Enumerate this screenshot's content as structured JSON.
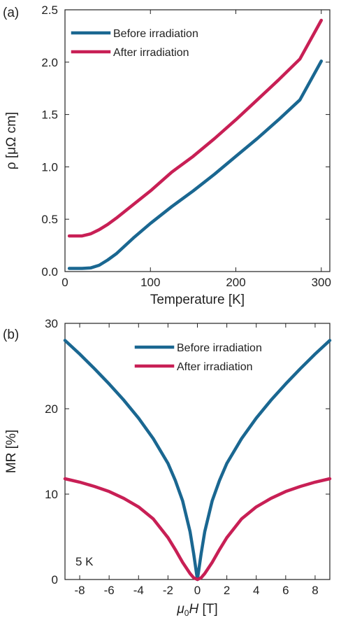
{
  "chart_data": [
    {
      "panel_label": "(a)",
      "type": "line",
      "xlabel": "Temperature [K]",
      "ylabel": "ρ [μΩ cm]",
      "xlim": [
        0,
        310
      ],
      "ylim": [
        0,
        2.5
      ],
      "xticks": [
        0,
        100,
        200,
        300
      ],
      "xtick_labels": [
        "0",
        "100",
        "200",
        "300"
      ],
      "yticks": [
        0,
        0.5,
        1.0,
        1.5,
        2.0,
        2.5
      ],
      "ytick_labels": [
        "0.0",
        "0.5",
        "1.0",
        "1.5",
        "2.0",
        "2.5"
      ],
      "grid": false,
      "legend_position": "top-left",
      "series": [
        {
          "name": "Before irradiation",
          "color": "#1a6791",
          "x": [
            5,
            10,
            20,
            30,
            40,
            50,
            60,
            80,
            100,
            125,
            150,
            175,
            200,
            225,
            250,
            275,
            300
          ],
          "y": [
            0.03,
            0.03,
            0.03,
            0.035,
            0.06,
            0.11,
            0.17,
            0.32,
            0.46,
            0.62,
            0.77,
            0.93,
            1.1,
            1.27,
            1.45,
            1.64,
            2.01
          ]
        },
        {
          "name": "After irradiation",
          "color": "#c81f55",
          "x": [
            5,
            10,
            20,
            30,
            40,
            50,
            60,
            80,
            100,
            125,
            150,
            175,
            200,
            225,
            250,
            275,
            300
          ],
          "y": [
            0.34,
            0.34,
            0.34,
            0.36,
            0.4,
            0.45,
            0.51,
            0.64,
            0.77,
            0.95,
            1.1,
            1.27,
            1.45,
            1.64,
            1.83,
            2.03,
            2.4
          ]
        }
      ]
    },
    {
      "panel_label": "(b)",
      "type": "line",
      "xlabel_prefix": "μ",
      "xlabel_sub": "0",
      "xlabel_var": "H",
      "xlabel_unit": " [T]",
      "ylabel": "MR [%]",
      "annotation": "5 K",
      "xlim": [
        -9,
        9
      ],
      "ylim": [
        0,
        30
      ],
      "xticks": [
        -8,
        -6,
        -4,
        -2,
        0,
        2,
        4,
        6,
        8
      ],
      "xtick_labels": [
        "-8",
        "-6",
        "-4",
        "-2",
        "0",
        "2",
        "4",
        "6",
        "8"
      ],
      "yticks": [
        0,
        10,
        20,
        30
      ],
      "ytick_labels": [
        "0",
        "10",
        "20",
        "30"
      ],
      "grid": false,
      "legend_position": "top-center",
      "series": [
        {
          "name": "Before irradiation",
          "color": "#1a6791",
          "x": [
            -9,
            -8,
            -7,
            -6,
            -5,
            -4,
            -3,
            -2,
            -1.5,
            -1,
            -0.5,
            -0.25,
            0,
            0.25,
            0.5,
            1,
            1.5,
            2,
            3,
            4,
            5,
            6,
            7,
            8,
            9
          ],
          "y": [
            28,
            26.4,
            24.7,
            22.9,
            21,
            18.9,
            16.5,
            13.6,
            11.6,
            9.2,
            5.6,
            3,
            0,
            3,
            5.6,
            9.2,
            11.6,
            13.6,
            16.5,
            18.9,
            21,
            22.9,
            24.7,
            26.4,
            28
          ]
        },
        {
          "name": "After irradiation",
          "color": "#c81f55",
          "x": [
            -9,
            -8,
            -7,
            -6,
            -5,
            -4,
            -3,
            -2,
            -1.5,
            -1,
            -0.5,
            -0.25,
            0,
            0.25,
            0.5,
            1,
            1.5,
            2,
            3,
            4,
            5,
            6,
            7,
            8,
            9
          ],
          "y": [
            11.8,
            11.4,
            10.9,
            10.3,
            9.5,
            8.5,
            7.1,
            4.9,
            3.5,
            2,
            0.7,
            0.2,
            0,
            0.2,
            0.7,
            2,
            3.5,
            4.9,
            7.1,
            8.5,
            9.5,
            10.3,
            10.9,
            11.4,
            11.8
          ]
        }
      ]
    }
  ]
}
